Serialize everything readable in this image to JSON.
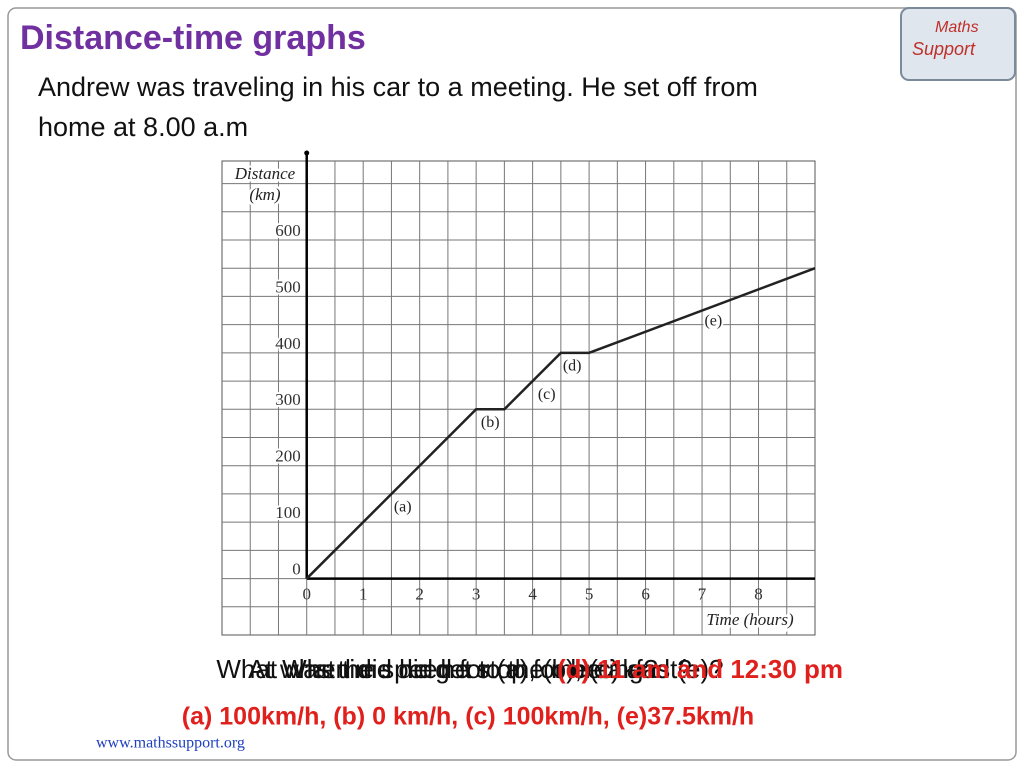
{
  "slide": {
    "title": "Distance-time graphs",
    "intro": [
      "Andrew was traveling in his car to a meeting. He set off from",
      "home at 8.00 a.m"
    ],
    "questions": [
      "At what time did he stop for breakfast?",
      "When did he get to the meeting?",
      "What was the speed for (a), (b), (c) and (e)?"
    ],
    "answer_times": "(d) 11 am and 12:30 pm",
    "answer_speeds": "(a) 100km/h,  (b) 0 km/h,  (c) 100km/h, (e)37.5km/h",
    "footer": "www.mathssupport.org",
    "logo": [
      "Maths",
      "Support"
    ]
  },
  "chart_data": {
    "type": "line",
    "y_label": "Distance",
    "y_unit": "(km)",
    "x_label": "Time (hours)",
    "x": [
      0,
      3,
      3.5,
      4.5,
      5,
      9
    ],
    "values": [
      0,
      300,
      300,
      400,
      400,
      550
    ],
    "color": "#222222",
    "annotations": [
      "(a)",
      "(b)",
      "(c)",
      "(d)",
      "(e)"
    ],
    "xlim": [
      -1.5,
      9
    ],
    "ylim": [
      -100,
      740
    ],
    "xticks": [
      0,
      1,
      2,
      3,
      4,
      5,
      6,
      7,
      8
    ],
    "yticks": [
      0,
      100,
      200,
      300,
      400,
      500,
      600
    ],
    "grid": true
  }
}
